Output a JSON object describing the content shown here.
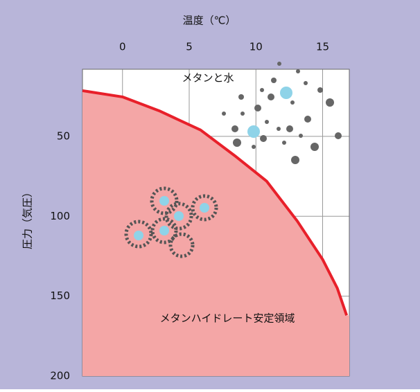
{
  "chart_data": {
    "type": "line",
    "x_label": "温度（℃）",
    "y_label": "圧力（気圧）",
    "annotations": [
      "メタンと水",
      "メタンハイドレート安定領域"
    ],
    "x": [
      -3,
      0,
      2.75,
      5.85,
      8.4,
      10.8,
      13.1,
      15,
      16.1,
      16.8
    ],
    "values": [
      21.4,
      25.3,
      34,
      46,
      62,
      78,
      103,
      127,
      145,
      162
    ],
    "color": "#e8202a",
    "fill_color": "#f4a6a6",
    "xlim": [
      -3,
      17
    ],
    "xticks": [
      0,
      5,
      10,
      15
    ],
    "ylim": [
      8,
      200
    ],
    "yticks": [
      50,
      100,
      150,
      200
    ],
    "y_inverted": true,
    "x_axis_top": true,
    "grid": true
  }
}
